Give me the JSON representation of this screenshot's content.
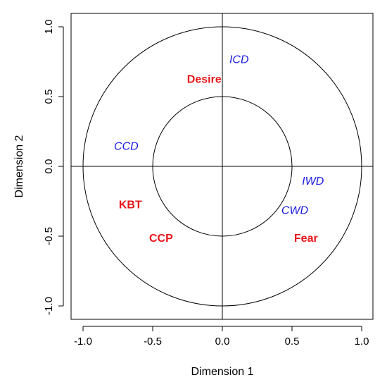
{
  "chart_data": {
    "type": "scatter",
    "xlabel": "Dimension 1",
    "ylabel": "Dimension 2",
    "xlim": [
      -1.0,
      1.0
    ],
    "ylim": [
      -1.0,
      1.0
    ],
    "xticks": [
      -1.0,
      -0.5,
      0.0,
      0.5,
      1.0
    ],
    "yticks": [
      -1.0,
      -0.5,
      0.0,
      0.5,
      1.0
    ],
    "xtick_labels": [
      "-1.0",
      "-0.5",
      "0.0",
      "0.5",
      "1.0"
    ],
    "ytick_labels": [
      "-1.0",
      "-0.5",
      "0.0",
      "0.5",
      "1.0"
    ],
    "circles": [
      1.0,
      0.5
    ],
    "reference_lines": {
      "x": 0,
      "y": 0
    },
    "grid": false,
    "points": [
      {
        "label": "ICD",
        "x": 0.12,
        "y": 0.76,
        "style": "blue-italic",
        "color": "#1a1adf"
      },
      {
        "label": "Desire",
        "x": -0.13,
        "y": 0.62,
        "style": "red-bold",
        "color": "#e8161a"
      },
      {
        "label": "CCD",
        "x": -0.69,
        "y": 0.14,
        "style": "blue-italic",
        "color": "#1a1adf"
      },
      {
        "label": "IWD",
        "x": 0.65,
        "y": -0.11,
        "style": "blue-italic",
        "color": "#1a1adf"
      },
      {
        "label": "KBT",
        "x": -0.66,
        "y": -0.28,
        "style": "red-bold",
        "color": "#e8161a"
      },
      {
        "label": "CWD",
        "x": 0.52,
        "y": -0.32,
        "style": "blue-italic",
        "color": "#1a1adf"
      },
      {
        "label": "CCP",
        "x": -0.44,
        "y": -0.52,
        "style": "red-bold",
        "color": "#e8161a"
      },
      {
        "label": "Fear",
        "x": 0.6,
        "y": -0.52,
        "style": "red-bold",
        "color": "#e8161a"
      }
    ]
  }
}
